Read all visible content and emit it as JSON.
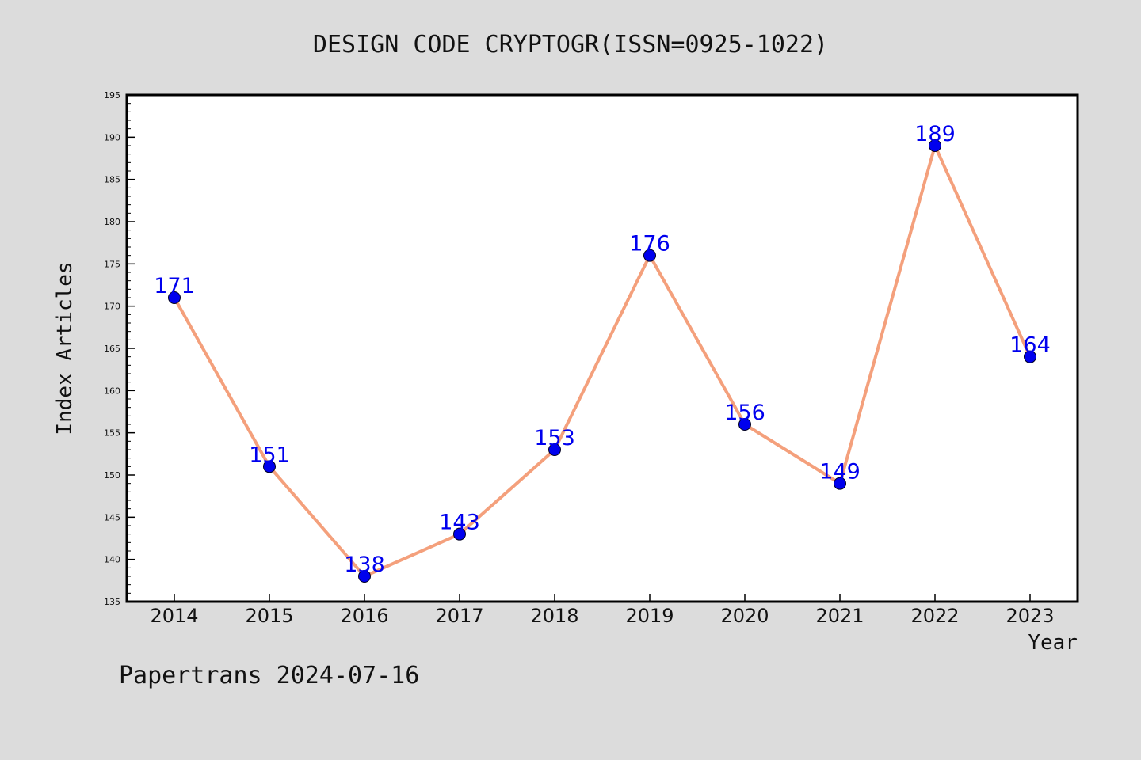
{
  "chart_data": {
    "type": "line",
    "title": "DESIGN CODE CRYPTOGR(ISSN=0925-1022)",
    "xlabel": "Year",
    "ylabel": "Index Articles",
    "categories": [
      "2014",
      "2015",
      "2016",
      "2017",
      "2018",
      "2019",
      "2020",
      "2021",
      "2022",
      "2023"
    ],
    "series": [
      {
        "values": [
          171,
          151,
          138,
          143,
          153,
          176,
          156,
          149,
          189,
          164
        ]
      }
    ],
    "ylim": [
      135,
      195
    ],
    "yticks": [
      135,
      140,
      145,
      150,
      155,
      160,
      165,
      170,
      175,
      180,
      185,
      190,
      195
    ],
    "grid": false,
    "data_labels": true,
    "line_color": "#f4a07c",
    "marker_color": "#0000ee",
    "label_color": "#0000ee"
  },
  "footer": {
    "text": "Papertrans 2024-07-16"
  },
  "colors": {
    "background": "#dcdcdc",
    "plot_background": "#ffffff",
    "axis": "#000000",
    "text": "#111111"
  }
}
